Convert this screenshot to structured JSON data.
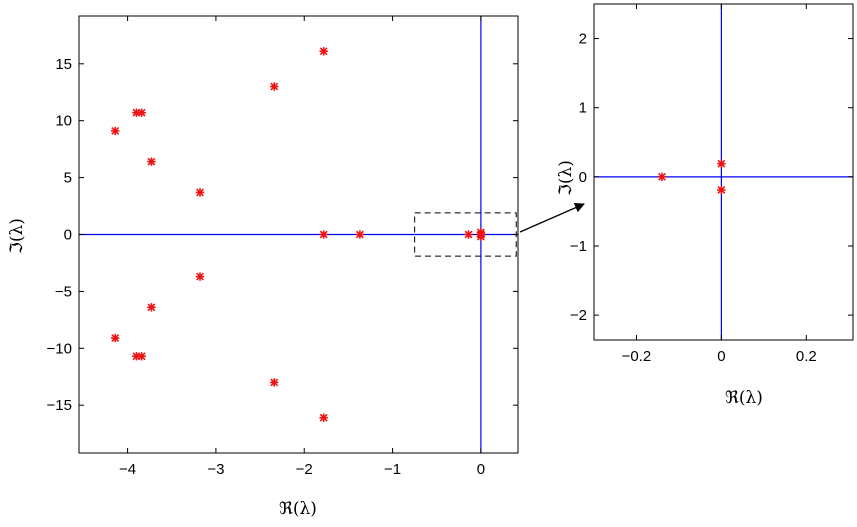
{
  "chart_data": [
    {
      "type": "scatter",
      "xlabel": "ℜ(λ)",
      "ylabel": "ℑ(λ)",
      "xlim": [
        -4.55,
        0.42
      ],
      "ylim": [
        -19.2,
        19.2
      ],
      "xticks": [
        -4,
        -3,
        -2,
        -1,
        0
      ],
      "xtick_labels": [
        "−4",
        "−3",
        "−2",
        "−1",
        "0"
      ],
      "yticks": [
        -15,
        -10,
        -5,
        0,
        5,
        10,
        15
      ],
      "ytick_labels": [
        "−15",
        "−10",
        "−5",
        "0",
        "5",
        "10",
        "15"
      ],
      "marker": "asterisk",
      "marker_color": "#ee1111",
      "reference_line_color": "#0000ff",
      "reference_lines": {
        "x": 0,
        "y": 0
      },
      "grid": false,
      "zoom_region": {
        "x": [
          -0.75,
          0.4
        ],
        "y": [
          -1.9,
          1.9
        ]
      },
      "points": [
        {
          "x": -1.78,
          "y": 16.1
        },
        {
          "x": -1.78,
          "y": -16.1
        },
        {
          "x": -2.34,
          "y": 13.0
        },
        {
          "x": -2.34,
          "y": -13.0
        },
        {
          "x": -3.9,
          "y": 10.7
        },
        {
          "x": -3.9,
          "y": -10.7
        },
        {
          "x": -3.84,
          "y": 10.7
        },
        {
          "x": -3.84,
          "y": -10.7
        },
        {
          "x": -4.14,
          "y": 9.1
        },
        {
          "x": -4.14,
          "y": -9.1
        },
        {
          "x": -3.73,
          "y": 6.4
        },
        {
          "x": -3.73,
          "y": -6.4
        },
        {
          "x": -3.18,
          "y": 3.7
        },
        {
          "x": -3.18,
          "y": -3.7
        },
        {
          "x": -1.78,
          "y": 0
        },
        {
          "x": -1.37,
          "y": 0
        },
        {
          "x": -0.14,
          "y": 0
        },
        {
          "x": 0,
          "y": 0.19
        },
        {
          "x": 0,
          "y": -0.19
        },
        {
          "x": 0,
          "y": 0
        }
      ]
    },
    {
      "type": "scatter",
      "xlabel": "ℜ(λ)",
      "ylabel": "ℑ(λ)",
      "xlim": [
        -0.3,
        0.31
      ],
      "ylim": [
        -2.36,
        2.5
      ],
      "xticks": [
        -0.2,
        0,
        0.2
      ],
      "xtick_labels": [
        "−0.2",
        "0",
        "0.2"
      ],
      "yticks": [
        -2,
        -1,
        0,
        1,
        2
      ],
      "ytick_labels": [
        "−2",
        "−1",
        "0",
        "1",
        "2"
      ],
      "marker": "asterisk",
      "marker_color": "#ee1111",
      "reference_line_color": "#0000ff",
      "reference_lines": {
        "x": 0,
        "y": 0
      },
      "grid": false,
      "points": [
        {
          "x": -0.14,
          "y": 0
        },
        {
          "x": 0,
          "y": 0.19
        },
        {
          "x": 0,
          "y": -0.19
        }
      ]
    }
  ]
}
